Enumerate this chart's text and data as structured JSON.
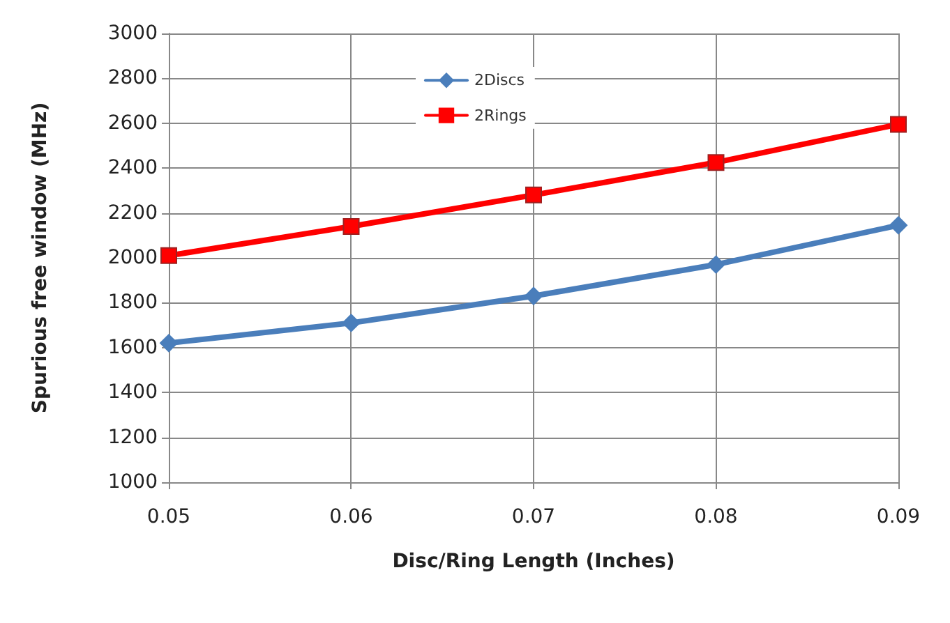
{
  "chart_data": {
    "type": "line",
    "xlabel": "Disc/Ring Length (Inches)",
    "ylabel": "Spurious free window (MHz)",
    "x": [
      0.05,
      0.06,
      0.07,
      0.08,
      0.09
    ],
    "series": [
      {
        "name": "2Discs",
        "color": "#4a7ebb",
        "marker": "diamond",
        "values": [
          1620,
          1710,
          1830,
          1970,
          2145
        ]
      },
      {
        "name": "2Rings",
        "color": "#ff0000",
        "marker": "square",
        "values": [
          2010,
          2140,
          2280,
          2425,
          2595
        ]
      }
    ],
    "xlim": [
      0.05,
      0.09
    ],
    "xticks": [
      0.05,
      0.06,
      0.07,
      0.08,
      0.09
    ],
    "ylim": [
      1000,
      3000
    ],
    "yticks": [
      1000,
      1200,
      1400,
      1600,
      1800,
      2000,
      2200,
      2400,
      2600,
      2800,
      3000
    ],
    "grid": true,
    "legend": "top",
    "line_style": "solid"
  }
}
